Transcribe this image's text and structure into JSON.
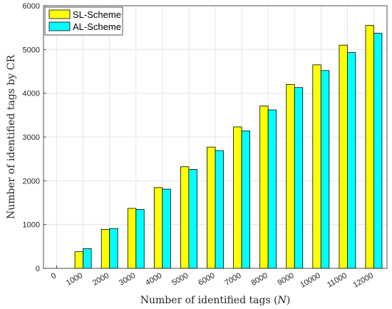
{
  "chart_data": {
    "type": "bar",
    "xlabel": "Number of identified tags (",
    "xlabel_var": "N",
    "xlabel_end": ")",
    "ylabel": "Number of identified tags by CR",
    "categories": [
      "0",
      "1000",
      "2000",
      "3000",
      "4000",
      "5000",
      "6000",
      "7000",
      "8000",
      "9000",
      "10000",
      "11000",
      "12000"
    ],
    "series": [
      {
        "name": "SL-Scheme",
        "color": "#ffff00",
        "values": [
          null,
          380,
          890,
          1370,
          1845,
          2320,
          2770,
          3230,
          3710,
          4200,
          4650,
          5100,
          5550
        ]
      },
      {
        "name": "AL-Scheme",
        "color": "#00ffff",
        "values": [
          null,
          450,
          910,
          1345,
          1810,
          2260,
          2690,
          3140,
          3620,
          4130,
          4520,
          4930,
          5370
        ]
      }
    ],
    "ylim": [
      0,
      6000
    ],
    "yticks": [
      "0",
      "1000",
      "2000",
      "3000",
      "4000",
      "5000",
      "6000"
    ],
    "grid": true,
    "legend": "top-left"
  }
}
